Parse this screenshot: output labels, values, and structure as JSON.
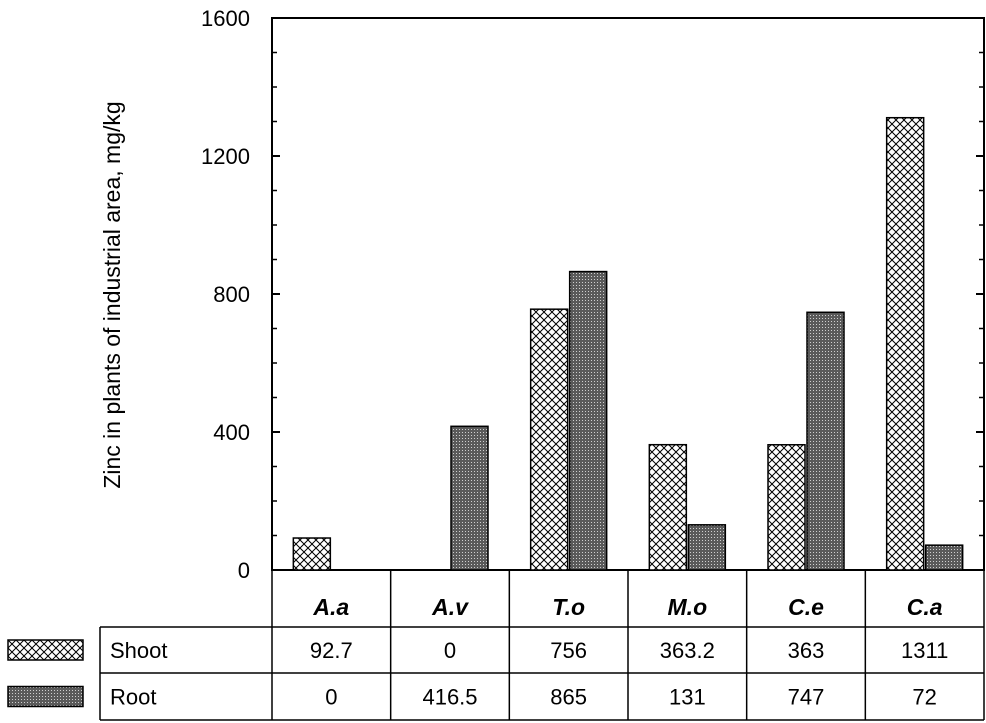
{
  "chart_data": {
    "type": "bar",
    "ylabel": "Zinc in plants of industrial area, mg/kg",
    "xlabel": "",
    "title": "",
    "ylim": [
      0,
      1600
    ],
    "yticks": [
      0,
      400,
      800,
      1200,
      1600
    ],
    "categories": [
      "A.a",
      "A.v",
      "T.o",
      "M.o",
      "C.e",
      "C.a"
    ],
    "series": [
      {
        "name": "Shoot",
        "pattern": "crosshatch",
        "values": [
          92.7,
          0,
          756,
          363.2,
          363,
          1311
        ],
        "table_values": [
          "92.7",
          "0",
          "756",
          "363.2",
          "363",
          "1311"
        ]
      },
      {
        "name": "Root",
        "pattern": "dense-dots",
        "values": [
          0,
          416.5,
          865,
          131,
          747,
          72
        ],
        "table_values": [
          "0",
          "416.5",
          "865",
          "131",
          "747",
          "72"
        ]
      }
    ],
    "grid": false,
    "legend_placement": "bottom-left data table"
  }
}
